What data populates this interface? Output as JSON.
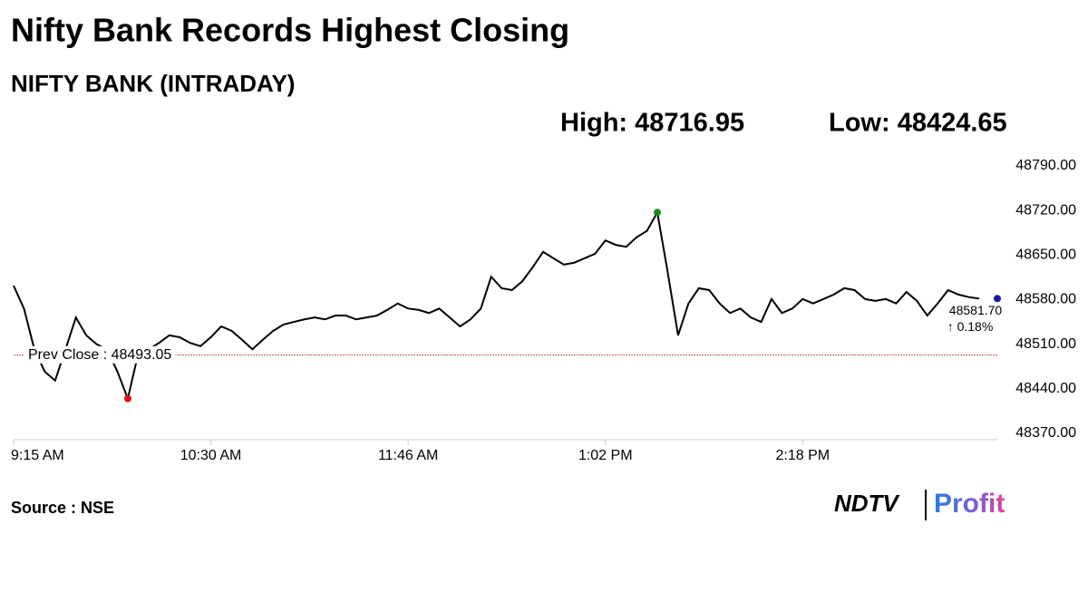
{
  "chart_data": {
    "type": "line",
    "title": "Nifty Bank Records Highest Closing",
    "subtitle": "NIFTY BANK (INTRADAY)",
    "high_text": "High: 48716.95",
    "low_text": "Low: 48424.65",
    "categories": [
      "9:15 AM",
      null,
      null,
      null,
      null,
      null,
      null,
      null,
      null,
      null,
      null,
      null,
      null,
      null,
      null,
      null,
      null,
      null,
      null,
      "10:30 AM",
      null,
      null,
      null,
      null,
      null,
      null,
      null,
      null,
      null,
      null,
      null,
      null,
      null,
      null,
      null,
      null,
      null,
      null,
      "11:46 AM",
      null,
      null,
      null,
      null,
      null,
      null,
      null,
      null,
      null,
      null,
      null,
      null,
      null,
      null,
      null,
      null,
      null,
      null,
      "1:02 PM",
      null,
      null,
      null,
      null,
      null,
      null,
      null,
      null,
      null,
      null,
      null,
      null,
      null,
      null,
      null,
      null,
      null,
      null,
      "2:18 PM",
      null,
      null,
      null,
      null,
      null,
      null,
      null,
      null,
      null,
      null,
      null,
      null,
      null,
      null,
      null,
      null,
      null
    ],
    "values": [
      48602,
      48566,
      48502,
      48467,
      48453,
      48502,
      48552,
      48524,
      48510,
      48502,
      48467,
      48424.65,
      48495,
      48502,
      48512,
      48524,
      48521,
      48512,
      48507,
      48521,
      48538,
      48531,
      48517,
      48502,
      48517,
      48531,
      48541,
      48545,
      48549,
      48552,
      48549,
      48555,
      48555,
      48549,
      48552,
      48555,
      48564,
      48574,
      48566,
      48564,
      48559,
      48566,
      48552,
      48538,
      48549,
      48566,
      48616,
      48598,
      48595,
      48609,
      48631,
      48655,
      48645,
      48635,
      48638,
      48645,
      48652,
      48673,
      48666,
      48663,
      48678,
      48688,
      48716.95,
      48623,
      48524,
      48574,
      48598,
      48595,
      48574,
      48559,
      48566,
      48552,
      48545,
      48581,
      48559,
      48566,
      48581,
      48574,
      48581,
      48588,
      48598,
      48595,
      48581,
      48578,
      48581,
      48574,
      48592,
      48578,
      48555,
      48574,
      48595,
      48588,
      48584,
      48581.7
    ],
    "color": "#000000",
    "high_color": "#1a8a1a",
    "low_color": "#e01010",
    "last_color": "#1a1aa0",
    "last_label": "48581.70",
    "change_label": "↑ 0.18%",
    "change_color": "#1a8a1a",
    "prev_close": {
      "value": 48493.05,
      "label": "Prev Close : 48493.05",
      "color": "#c0504d"
    },
    "ylim": [
      48370,
      48790
    ],
    "yticks": [
      {
        "value": 48370,
        "label": "48370.00"
      },
      {
        "value": 48440,
        "label": "48440.00"
      },
      {
        "value": 48510,
        "label": "48510.00"
      },
      {
        "value": 48580,
        "label": "48580.00"
      },
      {
        "value": 48650,
        "label": "48650.00"
      },
      {
        "value": 48720,
        "label": "48720.00"
      },
      {
        "value": 48790,
        "label": "48790.00"
      }
    ],
    "source": "Source : NSE",
    "logo": {
      "brand": "NDTV",
      "product": "Profit"
    }
  }
}
